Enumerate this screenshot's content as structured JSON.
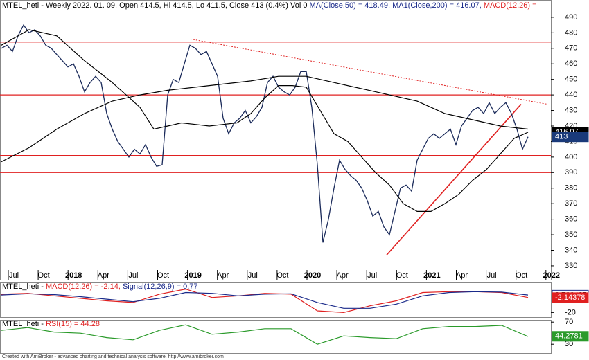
{
  "chart_data": [
    {
      "type": "line",
      "title_parts": [
        {
          "text": "MTEL_heti - Weekly 2022. 01. 09. Open 414.5, Hi 414.5, Lo 411.5, Close 413 (0.4%) Vol 0 ",
          "color": "#000000"
        },
        {
          "text": "MA(Close,50) = 418.49, MA1(Close,200) = 416.07, ",
          "color": "#1a2a8a"
        },
        {
          "text": "MACD(12,26) =",
          "color": "#e02020"
        }
      ],
      "xlabels": [
        "Jul",
        "Oct",
        "2018",
        "Apr",
        "Jul",
        "Oct",
        "2019",
        "Apr",
        "Jul",
        "Oct",
        "2020",
        "Apr",
        "Jul",
        "Oct",
        "2021",
        "Apr",
        "Jul",
        "Oct",
        "2022"
      ],
      "ylim": [
        327.3,
        501.1
      ],
      "yticks": [
        330,
        340,
        350,
        360,
        370,
        380,
        390,
        400,
        410,
        420,
        430,
        440,
        450,
        460,
        470,
        480,
        490
      ],
      "series": [
        {
          "color": "#1a2a5a",
          "values": [
            470,
            472,
            468,
            478,
            485,
            480,
            482,
            478,
            472,
            470,
            466,
            462,
            458,
            460,
            452,
            442,
            448,
            452,
            448,
            428,
            418,
            410,
            405,
            400,
            405,
            402,
            408,
            400,
            394,
            395,
            440,
            450,
            448,
            460,
            472,
            470,
            466,
            468,
            460,
            452,
            425,
            415,
            422,
            425,
            430,
            422,
            426,
            432,
            448,
            452,
            445,
            442,
            440,
            445,
            455,
            455,
            432,
            395,
            345,
            360,
            380,
            398,
            392,
            388,
            385,
            380,
            372,
            362,
            365,
            355,
            350,
            365,
            380,
            382,
            378,
            398,
            405,
            412,
            415,
            412,
            415,
            418,
            408,
            420,
            425,
            430,
            432,
            428,
            435,
            428,
            432,
            435,
            428,
            418,
            405,
            413
          ]
        },
        {
          "color": "#000000",
          "values": [
            472,
            477,
            482,
            480,
            478,
            470,
            462,
            455,
            448,
            440,
            432,
            418,
            420,
            422,
            421,
            420,
            421,
            422,
            428,
            438,
            446,
            446,
            445,
            430,
            415,
            410,
            400,
            390,
            382,
            370,
            365,
            365,
            370,
            376,
            385,
            392,
            402,
            412,
            416
          ]
        },
        {
          "color": "#000000",
          "values": [
            397,
            406,
            418,
            428,
            436,
            440,
            443,
            445,
            447,
            449,
            452,
            452,
            448,
            444,
            440,
            436,
            428,
            424,
            420,
            418
          ]
        }
      ],
      "hlines": [
        474,
        440,
        401,
        390
      ],
      "hline_color": "#e02020",
      "trendlines": [
        {
          "start": 476,
          "end": 434,
          "dashed": true
        },
        {
          "start": 337,
          "end": 434,
          "dashed": false
        }
      ],
      "markers": [
        {
          "value": 416.07,
          "color": "#000000",
          "style": "filled"
        },
        {
          "value": 413,
          "color": "#1a3a7a",
          "style": "filled"
        }
      ]
    },
    {
      "type": "line",
      "title_parts": [
        {
          "text": "MTEL_heti - ",
          "color": "#000000"
        },
        {
          "text": "MACD(12,26) = -2.14, ",
          "color": "#e02020"
        },
        {
          "text": "Signal(12,26,9) = 0.77",
          "color": "#1a2a8a"
        }
      ],
      "ylim": [
        -25.5,
        16
      ],
      "yticks": [
        -20
      ],
      "series": [
        {
          "color": "#e02020",
          "values": [
            2,
            3,
            0,
            -3,
            -6,
            -8,
            2,
            8,
            -2,
            0,
            3,
            2,
            -18,
            -20,
            -12,
            -6,
            4,
            5,
            5,
            4,
            -2
          ]
        },
        {
          "color": "#1a2a8a",
          "values": [
            1,
            2.5,
            1.5,
            -1,
            -4,
            -7,
            -3,
            4,
            3,
            0,
            2,
            2.5,
            -8,
            -15,
            -15,
            -10,
            0,
            4,
            5,
            4.5,
            1
          ]
        }
      ],
      "markers": [
        {
          "value": 0.766425,
          "color": "#1a2a8a",
          "style": "outline"
        },
        {
          "value": -2.14378,
          "color": "#e02020",
          "style": "filled"
        }
      ]
    },
    {
      "type": "line",
      "title_parts": [
        {
          "text": "MTEL_heti - ",
          "color": "#000000"
        },
        {
          "text": "RSI(15) = 44.28",
          "color": "#e02020"
        }
      ],
      "ylim": [
        14,
        74
      ],
      "yticks": [
        30,
        70
      ],
      "series": [
        {
          "color": "#2a9a2a",
          "values": [
            55,
            60,
            52,
            50,
            42,
            38,
            55,
            65,
            48,
            52,
            58,
            58,
            30,
            45,
            42,
            40,
            58,
            62,
            62,
            64,
            44
          ]
        }
      ],
      "markers": [
        {
          "value": 44.2781,
          "color": "#2a9a2a",
          "style": "filled"
        }
      ]
    }
  ],
  "footer": "Created with AmiBroker - advanced charting and technical analysis software. http://www.amibroker.com"
}
